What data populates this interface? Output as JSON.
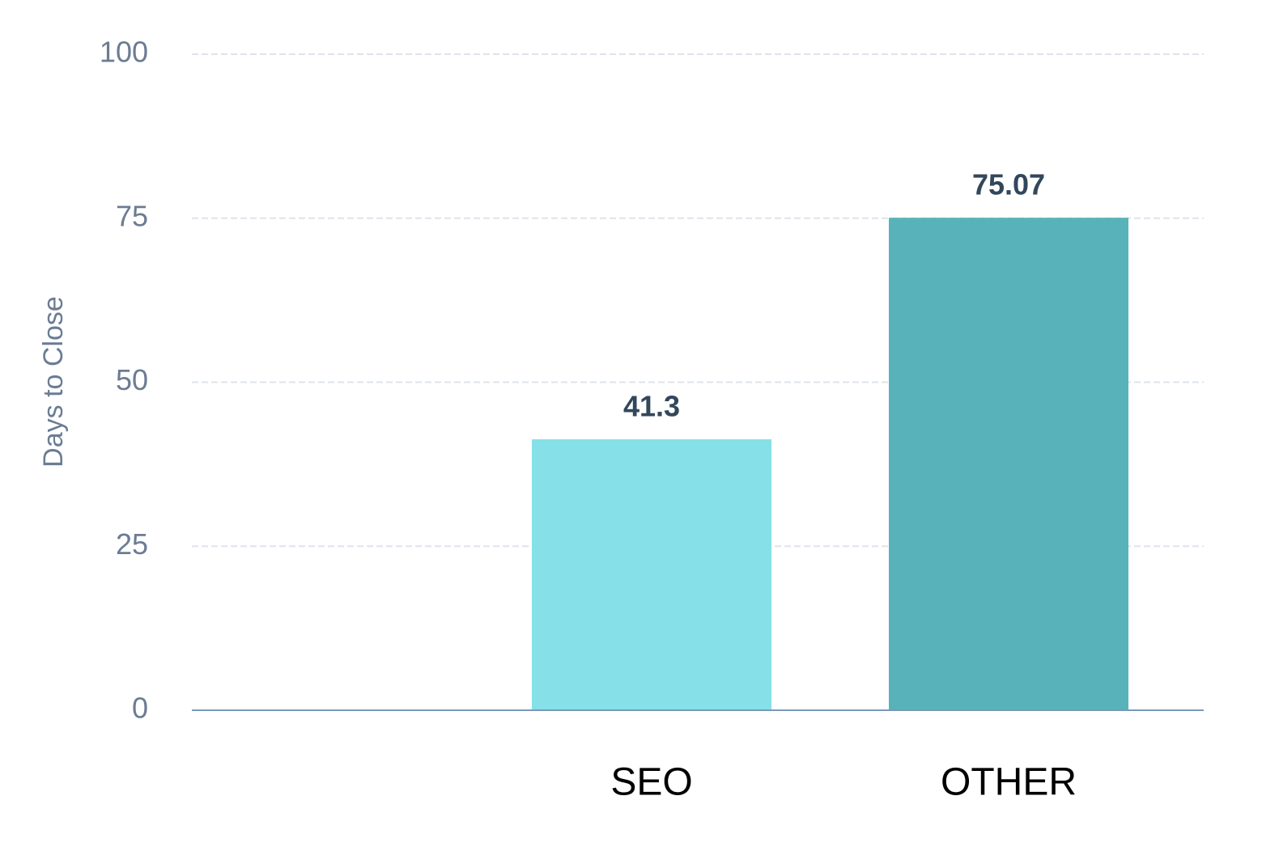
{
  "chart_data": {
    "type": "bar",
    "y_label": "Days to Close",
    "categories": [
      null,
      "SEO",
      "OTHER"
    ],
    "values": [
      null,
      41.3,
      75.07
    ],
    "colors": [
      "#85e0e7",
      "#85e0e7",
      "#58b2b9"
    ],
    "ylim": [
      0,
      100
    ],
    "yticks": [
      0,
      25,
      50,
      75,
      100
    ],
    "grid": true
  }
}
